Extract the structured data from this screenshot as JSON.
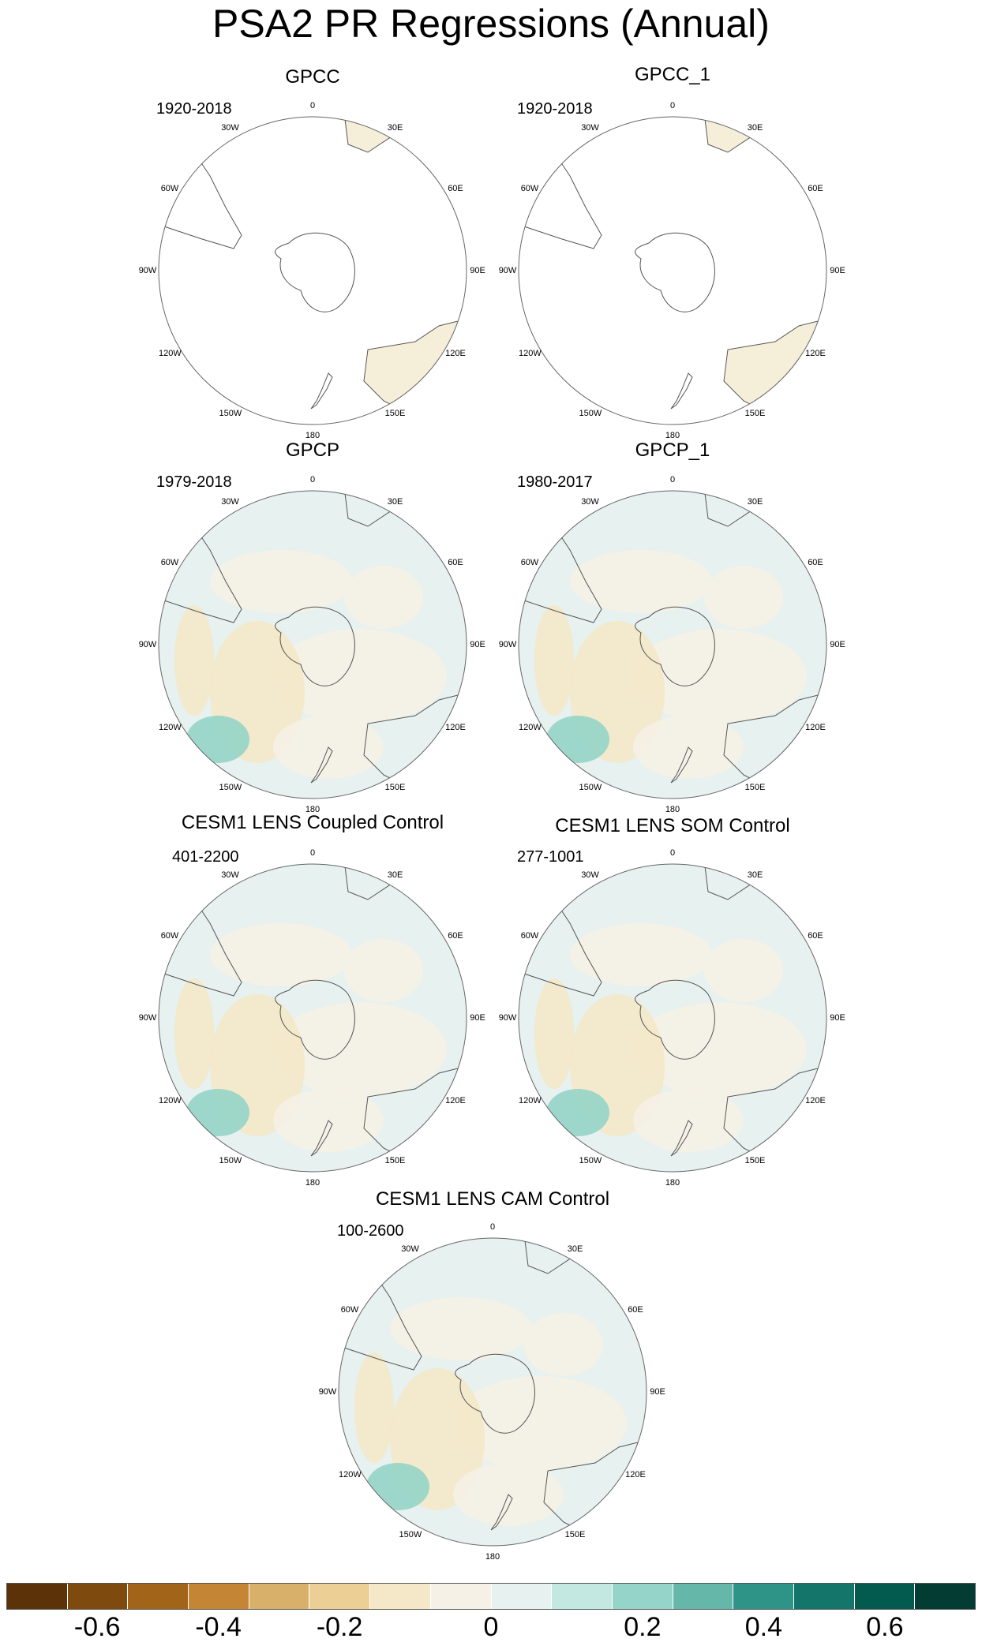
{
  "title": "PSA2 PR Regressions (Annual)",
  "panels": [
    {
      "title": "GPCC",
      "period": "1920-2018",
      "coverage": "land"
    },
    {
      "title": "GPCC_1",
      "period": "1920-2018",
      "coverage": "land"
    },
    {
      "title": "GPCP",
      "period": "1979-2018",
      "coverage": "full"
    },
    {
      "title": "GPCP_1",
      "period": "1980-2017",
      "coverage": "full"
    },
    {
      "title": "CESM1 LENS Coupled Control",
      "period": "401-2200",
      "coverage": "full"
    },
    {
      "title": "CESM1 LENS SOM Control",
      "period": "277-1001",
      "coverage": "full"
    },
    {
      "title": "CESM1 LENS CAM Control",
      "period": "100-2600",
      "coverage": "full"
    }
  ],
  "longitude_labels": [
    "0",
    "30E",
    "60E",
    "90E",
    "120E",
    "150E",
    "180",
    "150W",
    "120W",
    "90W",
    "60W",
    "30W"
  ],
  "colorbar": {
    "colors": [
      "#5c3308",
      "#7f4a0d",
      "#a16418",
      "#c48535",
      "#d9b06a",
      "#ebcf95",
      "#f4e8c8",
      "#f5f1e6",
      "#e6f1f0",
      "#c3e7e1",
      "#95d4c8",
      "#64b7a9",
      "#2f9488",
      "#14766b",
      "#035a4f",
      "#023c33"
    ],
    "tick_labels": [
      "-0.6",
      "-0.4",
      "-0.2",
      "0",
      "0.2",
      "0.4",
      "0.6"
    ],
    "tick_positions": [
      1,
      3,
      5,
      7.5,
      10,
      12,
      14
    ]
  }
}
